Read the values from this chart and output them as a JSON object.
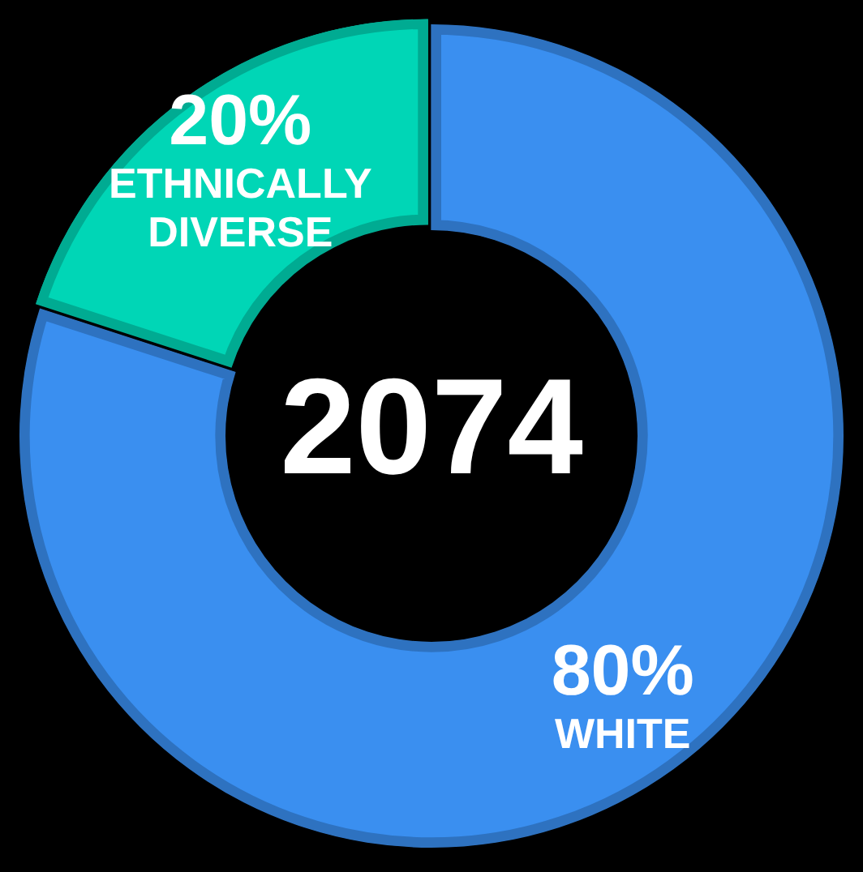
{
  "chart_data": {
    "type": "donut",
    "title": "2074",
    "categories": [
      "WHITE",
      "ETHNICALLY DIVERSE"
    ],
    "values": [
      80,
      20
    ],
    "colors": [
      "#3a8ff0",
      "#00d6b6"
    ],
    "value_labels": [
      "80%",
      "20%"
    ],
    "legend": false
  }
}
